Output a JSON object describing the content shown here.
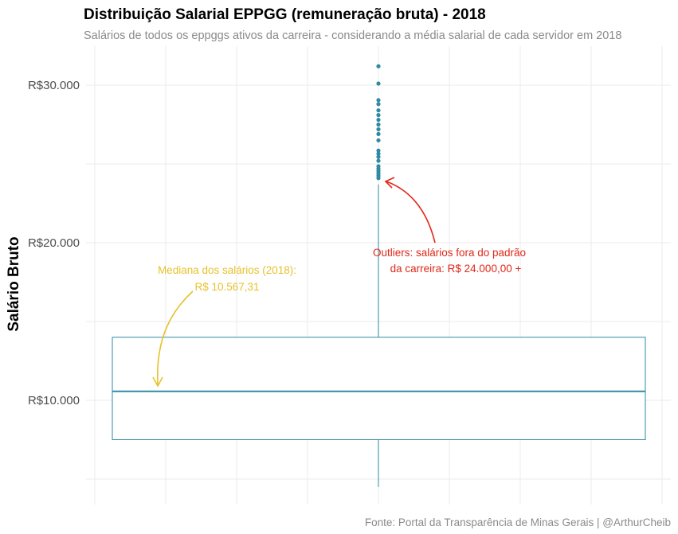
{
  "chart_data": {
    "type": "boxplot",
    "title": "Distribuição Salarial EPPGG (remuneração bruta) - 2018",
    "subtitle": "Salários de todos os eppggs ativos da carreira - considerando a média salarial de cada servidor em 2018",
    "ylabel": "Salário Bruto",
    "caption": "Fonte: Portal da Transparência de Minas Gerais | @ArthurCheib",
    "ylim": [
      4000,
      32000
    ],
    "yticks": [
      {
        "value": 10000,
        "label": "R$10.000"
      },
      {
        "value": 20000,
        "label": "R$20.000"
      },
      {
        "value": 30000,
        "label": "R$30.000"
      }
    ],
    "box": {
      "lower_whisker": 4500,
      "q1": 7500,
      "median": 10567.31,
      "q3": 14000,
      "upper_whisker": 23700
    },
    "outliers": [
      24100,
      24250,
      24400,
      24550,
      24700,
      24850,
      25200,
      25450,
      25650,
      25850,
      26500,
      26900,
      27200,
      27500,
      27800,
      28100,
      28400,
      28800,
      29050,
      30100,
      31200
    ],
    "colors": {
      "box": "#2e8ba3",
      "outlier": "#2e8ba3",
      "median_annotation": "#e7c12c",
      "outlier_annotation": "#e0281a",
      "grid": "#ebebeb"
    },
    "annotations": [
      {
        "name": "median",
        "lines": [
          "Mediana dos salários (2018):",
          "R$ 10.567,31"
        ],
        "color": "#e7c12c"
      },
      {
        "name": "outliers",
        "lines": [
          "Outliers: salários fora do padrão",
          "da carreira: R$ 24.000,00 +"
        ],
        "color": "#e0281a"
      }
    ],
    "grid": true
  }
}
